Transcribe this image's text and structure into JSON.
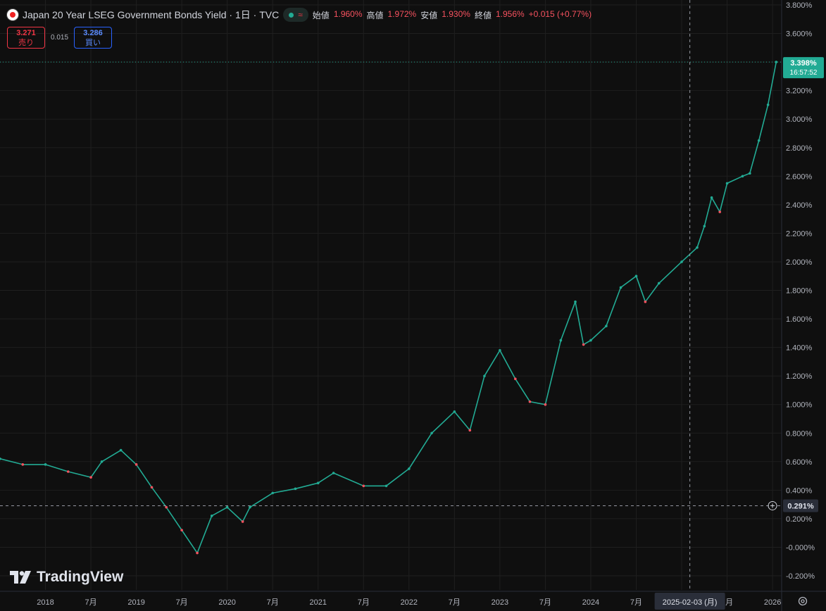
{
  "header": {
    "title": "Japan 20 Year LSEG Government Bonds Yield · 1日 · TVC",
    "open_label": "始値",
    "open_value": "1.960%",
    "high_label": "高値",
    "high_value": "1.972%",
    "low_label": "安値",
    "low_value": "1.930%",
    "close_label": "終値",
    "close_value": "1.956%",
    "change": "+0.015 (+0.77%)"
  },
  "trade": {
    "sell_price": "3.271",
    "sell_label": "売り",
    "spread": "0.015",
    "buy_price": "3.286",
    "buy_label": "買い"
  },
  "last_price": {
    "value": "3.398%",
    "countdown": "16:57:52"
  },
  "crosshair": {
    "price_label": "0.291%",
    "date_label": "2025-02-03 (月)"
  },
  "brand": {
    "name": "TradingView"
  },
  "colors": {
    "up": "#22ab94",
    "down": "#f7525f",
    "accent": "#22ab94",
    "background": "#0f0f0f"
  },
  "chart_data": {
    "type": "line",
    "title": "Japan 20 Year LSEG Government Bonds Yield · 1日 · TVC",
    "xlabel": "",
    "ylabel": "",
    "ylim": [
      -0.25,
      3.8
    ],
    "yticks": [
      "3.800%",
      "3.600%",
      "3.400%",
      "3.200%",
      "3.000%",
      "2.800%",
      "2.600%",
      "2.400%",
      "2.200%",
      "2.000%",
      "1.800%",
      "1.600%",
      "1.400%",
      "1.200%",
      "1.000%",
      "0.800%",
      "0.600%",
      "0.400%",
      "0.200%",
      "-0.000%",
      "-0.200%"
    ],
    "ytick_values": [
      3.8,
      3.6,
      3.4,
      3.2,
      3.0,
      2.8,
      2.6,
      2.4,
      2.2,
      2.0,
      1.8,
      1.6,
      1.4,
      1.2,
      1.0,
      0.8,
      0.6,
      0.4,
      0.2,
      0.0,
      -0.2
    ],
    "xticks": [
      {
        "label": "2018",
        "t": 2018.0
      },
      {
        "label": "7月",
        "t": 2018.5
      },
      {
        "label": "2019",
        "t": 2019.0
      },
      {
        "label": "7月",
        "t": 2019.5
      },
      {
        "label": "2020",
        "t": 2020.0
      },
      {
        "label": "7月",
        "t": 2020.5
      },
      {
        "label": "2021",
        "t": 2021.0
      },
      {
        "label": "7月",
        "t": 2021.5
      },
      {
        "label": "2022",
        "t": 2022.0
      },
      {
        "label": "7月",
        "t": 2022.5
      },
      {
        "label": "2023",
        "t": 2023.0
      },
      {
        "label": "7月",
        "t": 2023.5
      },
      {
        "label": "2024",
        "t": 2024.0
      },
      {
        "label": "7月",
        "t": 2024.5
      },
      {
        "label": "2025",
        "t": 2025.0
      },
      {
        "label": "7月",
        "t": 2025.5
      },
      {
        "label": "2026",
        "t": 2026.0
      }
    ],
    "series": [
      {
        "values": [
          {
            "x": 2017.5,
            "y": 0.62
          },
          {
            "x": 2017.75,
            "y": 0.58
          },
          {
            "x": 2018.0,
            "y": 0.58
          },
          {
            "x": 2018.25,
            "y": 0.53
          },
          {
            "x": 2018.5,
            "y": 0.49
          },
          {
            "x": 2018.62,
            "y": 0.6
          },
          {
            "x": 2018.83,
            "y": 0.68
          },
          {
            "x": 2019.0,
            "y": 0.58
          },
          {
            "x": 2019.17,
            "y": 0.42
          },
          {
            "x": 2019.33,
            "y": 0.28
          },
          {
            "x": 2019.5,
            "y": 0.12
          },
          {
            "x": 2019.67,
            "y": -0.04
          },
          {
            "x": 2019.83,
            "y": 0.22
          },
          {
            "x": 2020.0,
            "y": 0.28
          },
          {
            "x": 2020.17,
            "y": 0.18
          },
          {
            "x": 2020.25,
            "y": 0.28
          },
          {
            "x": 2020.5,
            "y": 0.38
          },
          {
            "x": 2020.75,
            "y": 0.41
          },
          {
            "x": 2021.0,
            "y": 0.45
          },
          {
            "x": 2021.17,
            "y": 0.52
          },
          {
            "x": 2021.5,
            "y": 0.43
          },
          {
            "x": 2021.75,
            "y": 0.43
          },
          {
            "x": 2022.0,
            "y": 0.55
          },
          {
            "x": 2022.25,
            "y": 0.8
          },
          {
            "x": 2022.5,
            "y": 0.95
          },
          {
            "x": 2022.67,
            "y": 0.82
          },
          {
            "x": 2022.83,
            "y": 1.2
          },
          {
            "x": 2023.0,
            "y": 1.38
          },
          {
            "x": 2023.17,
            "y": 1.18
          },
          {
            "x": 2023.33,
            "y": 1.02
          },
          {
            "x": 2023.5,
            "y": 1.0
          },
          {
            "x": 2023.67,
            "y": 1.45
          },
          {
            "x": 2023.83,
            "y": 1.72
          },
          {
            "x": 2023.92,
            "y": 1.42
          },
          {
            "x": 2024.0,
            "y": 1.45
          },
          {
            "x": 2024.17,
            "y": 1.55
          },
          {
            "x": 2024.33,
            "y": 1.82
          },
          {
            "x": 2024.5,
            "y": 1.9
          },
          {
            "x": 2024.6,
            "y": 1.72
          },
          {
            "x": 2024.75,
            "y": 1.85
          },
          {
            "x": 2025.0,
            "y": 2.0
          },
          {
            "x": 2025.17,
            "y": 2.1
          },
          {
            "x": 2025.25,
            "y": 2.25
          },
          {
            "x": 2025.33,
            "y": 2.45
          },
          {
            "x": 2025.42,
            "y": 2.35
          },
          {
            "x": 2025.5,
            "y": 2.55
          },
          {
            "x": 2025.67,
            "y": 2.6
          },
          {
            "x": 2025.75,
            "y": 2.62
          },
          {
            "x": 2025.85,
            "y": 2.85
          },
          {
            "x": 2025.95,
            "y": 3.1
          },
          {
            "x": 2026.04,
            "y": 3.4
          }
        ]
      }
    ]
  }
}
